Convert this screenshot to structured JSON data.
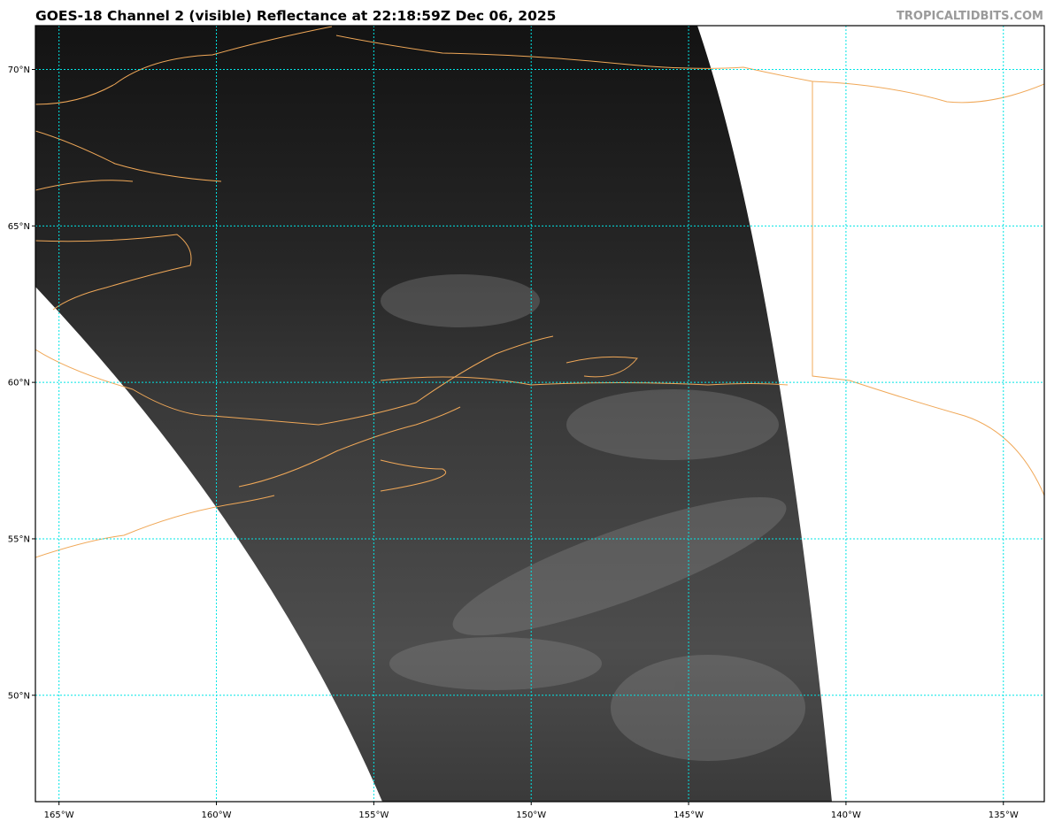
{
  "header": {
    "title": "GOES-18 Channel 2 (visible) Reflectance at 22:18:59Z Dec 06, 2025",
    "credit": "TROPICALTIDBITS.COM"
  },
  "map": {
    "projection": "geostationary imagery on lat/lon grid",
    "extent": {
      "lon": [
        -165.75,
        -133.7
      ],
      "lat": [
        46.6,
        71.4
      ]
    },
    "longitude_ticks": [
      {
        "value": -165,
        "label": "165°W"
      },
      {
        "value": -160,
        "label": "160°W"
      },
      {
        "value": -155,
        "label": "155°W"
      },
      {
        "value": -150,
        "label": "150°W"
      },
      {
        "value": -145,
        "label": "145°W"
      },
      {
        "value": -140,
        "label": "140°W"
      },
      {
        "value": -135,
        "label": "135°W"
      }
    ],
    "latitude_ticks": [
      {
        "value": 70,
        "label": "70°N"
      },
      {
        "value": 65,
        "label": "65°N"
      },
      {
        "value": 60,
        "label": "60°N"
      },
      {
        "value": 55,
        "label": "55°N"
      },
      {
        "value": 50,
        "label": "50°N"
      }
    ],
    "colors": {
      "gridlines": "#00e5e5",
      "coastlines": "#f0a858",
      "imagery_dark": "#141414",
      "imagery_light": "#5a5a5a"
    }
  }
}
